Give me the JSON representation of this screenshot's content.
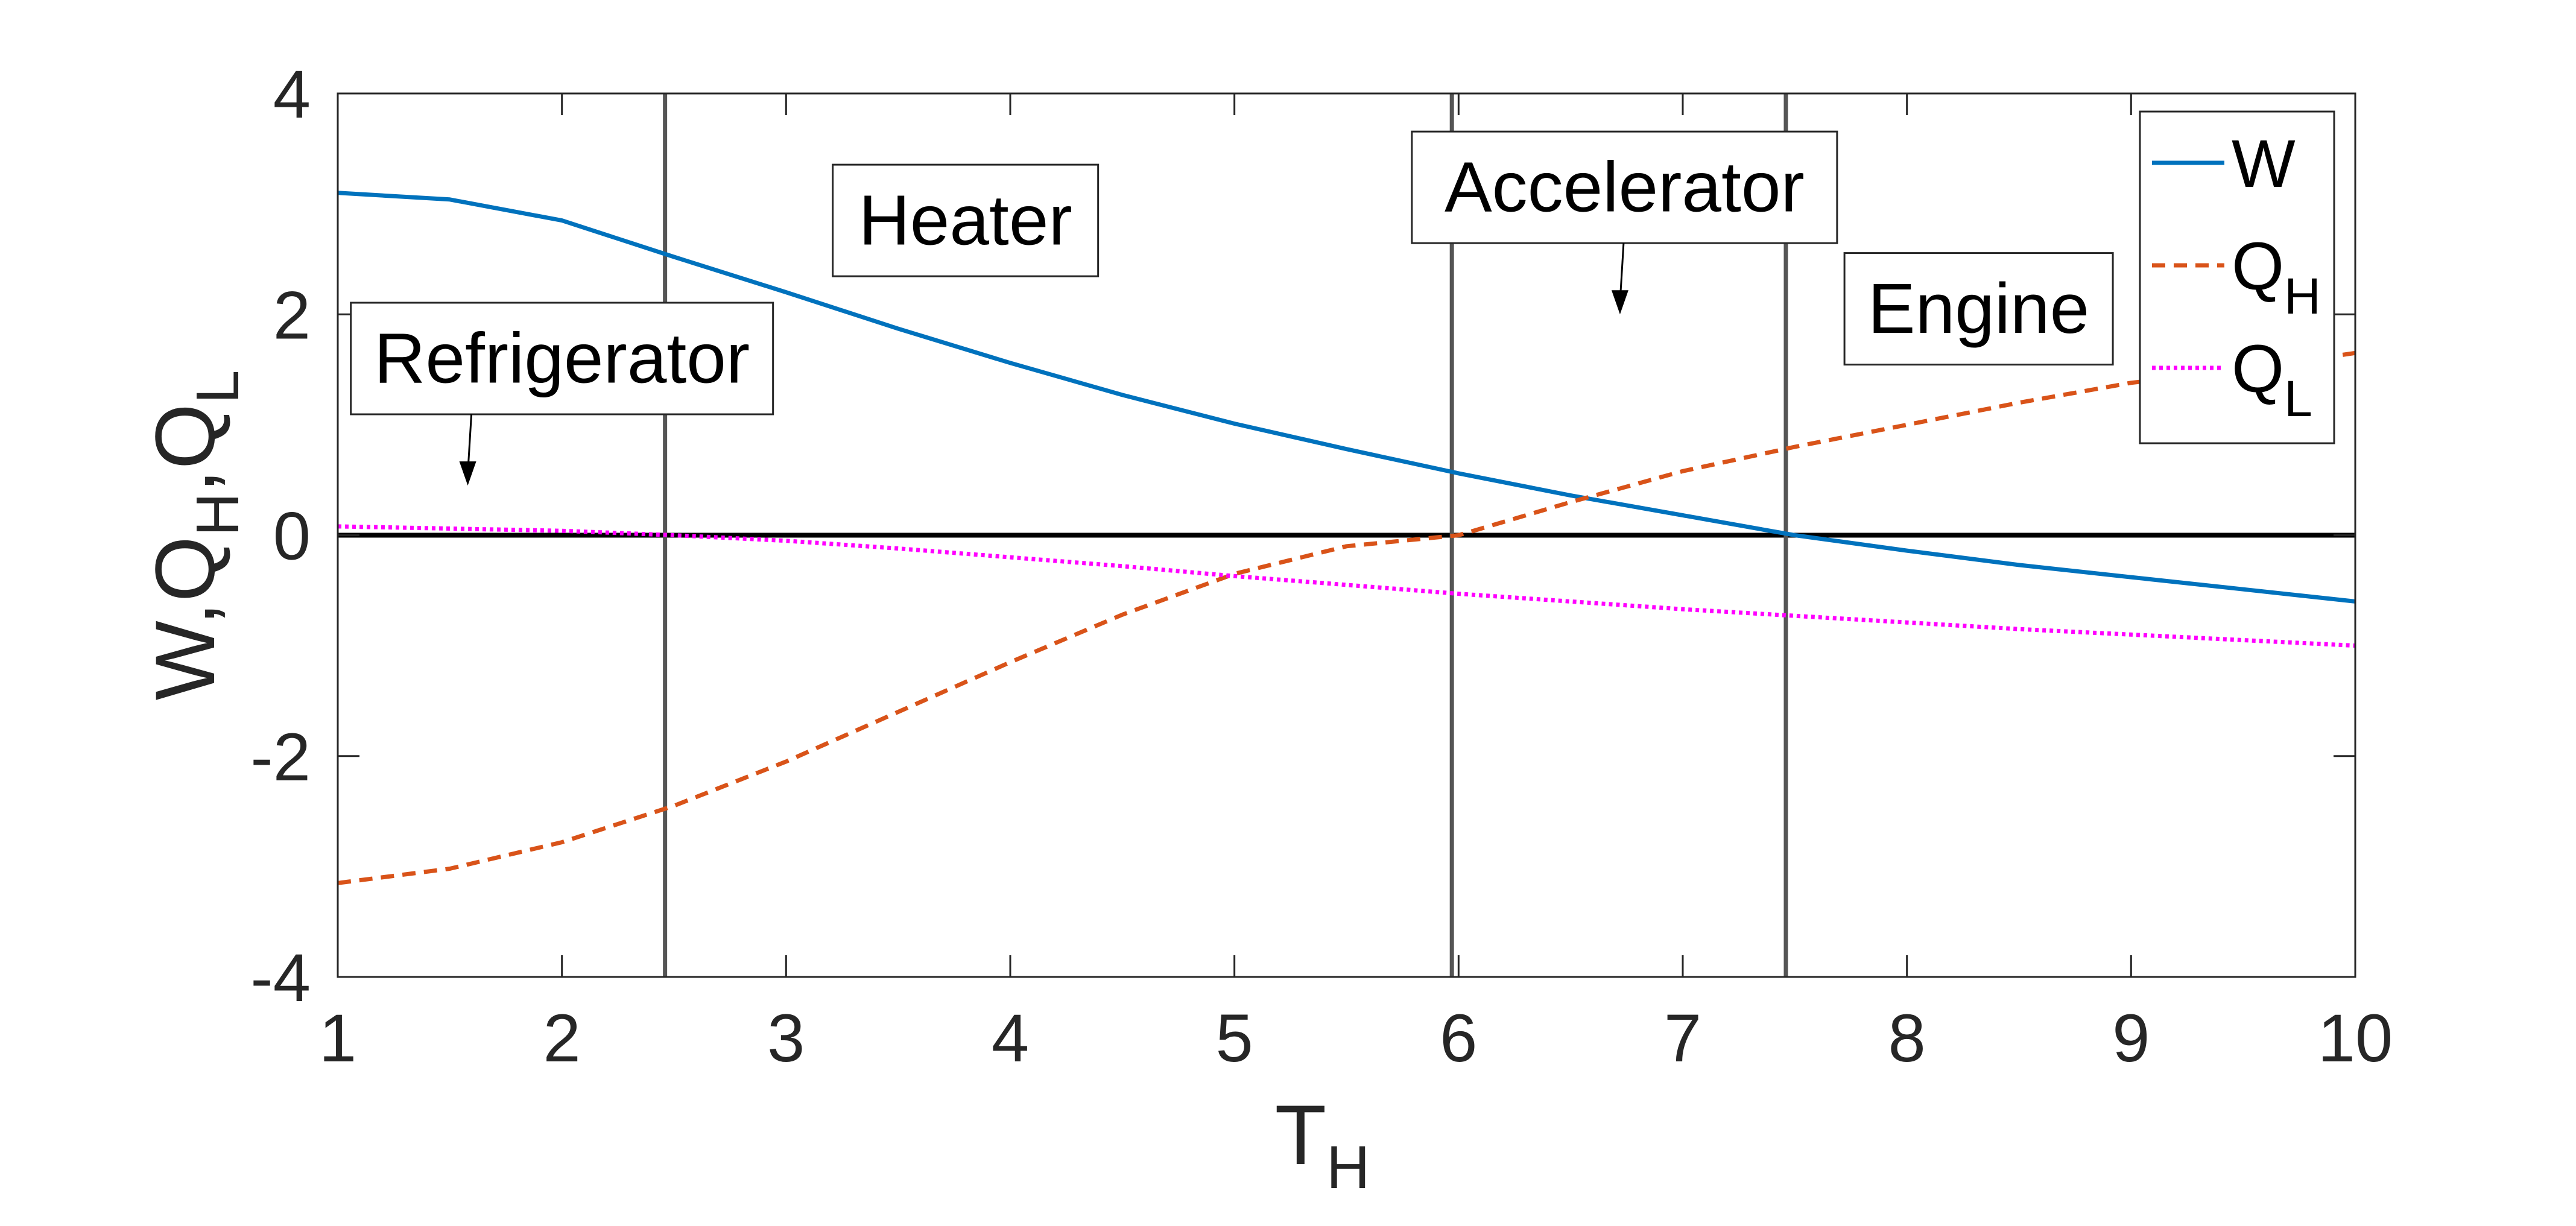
{
  "chart_data": {
    "type": "line",
    "xlabel": "T",
    "xlabel_sub": "H",
    "ylabel_parts": [
      "W,Q",
      "H",
      ",Q",
      "L"
    ],
    "xlim": [
      1,
      10
    ],
    "ylim": [
      -4,
      4
    ],
    "xticks": [
      "1",
      "2",
      "3",
      "4",
      "5",
      "6",
      "7",
      "8",
      "9",
      "10"
    ],
    "yticks": [
      "-4",
      "-2",
      "0",
      "2",
      "4"
    ],
    "grid": false,
    "legend_position": "top-right",
    "zero_line": 0,
    "vertical_lines": [
      2.46,
      5.97,
      7.46
    ],
    "regions": [
      {
        "label": "Refrigerator",
        "x": 2.0,
        "y": 1.6,
        "arrow_x": 1.58,
        "arrow_y": 0.45
      },
      {
        "label": "Heater",
        "x": 3.8,
        "y": 2.85,
        "arrow_x": null,
        "arrow_y": null
      },
      {
        "label": "Accelerator",
        "x": 6.74,
        "y": 3.15,
        "arrow_x": 6.72,
        "arrow_y": 2.0
      },
      {
        "label": "Engine",
        "x": 8.32,
        "y": 2.05,
        "arrow_x": null,
        "arrow_y": null
      }
    ],
    "series": [
      {
        "name": "W",
        "name_sub": "",
        "color": "#0072BD",
        "dash": "solid",
        "x": [
          1,
          1.5,
          2,
          2.5,
          3,
          3.5,
          4,
          4.5,
          5,
          5.5,
          6,
          6.5,
          7,
          7.5,
          8,
          8.5,
          9,
          9.5,
          10
        ],
        "y": [
          3.1,
          3.04,
          2.85,
          2.52,
          2.2,
          1.87,
          1.56,
          1.27,
          1.01,
          0.78,
          0.56,
          0.36,
          0.18,
          0.0,
          -0.14,
          -0.27,
          -0.38,
          -0.49,
          -0.6
        ]
      },
      {
        "name": "Q",
        "name_sub": "H",
        "color": "#D95319",
        "dash": "dashed",
        "x": [
          1,
          1.5,
          2,
          2.5,
          3,
          3.5,
          4,
          4.5,
          5,
          5.5,
          6,
          6.5,
          7,
          7.5,
          8,
          8.5,
          9,
          9.5,
          10
        ],
        "y": [
          -3.15,
          -3.02,
          -2.78,
          -2.45,
          -2.05,
          -1.6,
          -1.15,
          -0.72,
          -0.35,
          -0.1,
          0.0,
          0.3,
          0.58,
          0.8,
          1.0,
          1.2,
          1.38,
          1.5,
          1.65
        ]
      },
      {
        "name": "Q",
        "name_sub": "L",
        "color": "#FF00FF",
        "dash": "dotted",
        "x": [
          1,
          1.5,
          2,
          2.5,
          3,
          3.5,
          4,
          4.5,
          5,
          5.5,
          6,
          6.5,
          7,
          7.5,
          8,
          8.5,
          9,
          9.5,
          10
        ],
        "y": [
          0.08,
          0.06,
          0.04,
          0.0,
          -0.05,
          -0.12,
          -0.2,
          -0.28,
          -0.37,
          -0.45,
          -0.53,
          -0.6,
          -0.67,
          -0.73,
          -0.79,
          -0.85,
          -0.9,
          -0.95,
          -1.0
        ]
      }
    ]
  }
}
